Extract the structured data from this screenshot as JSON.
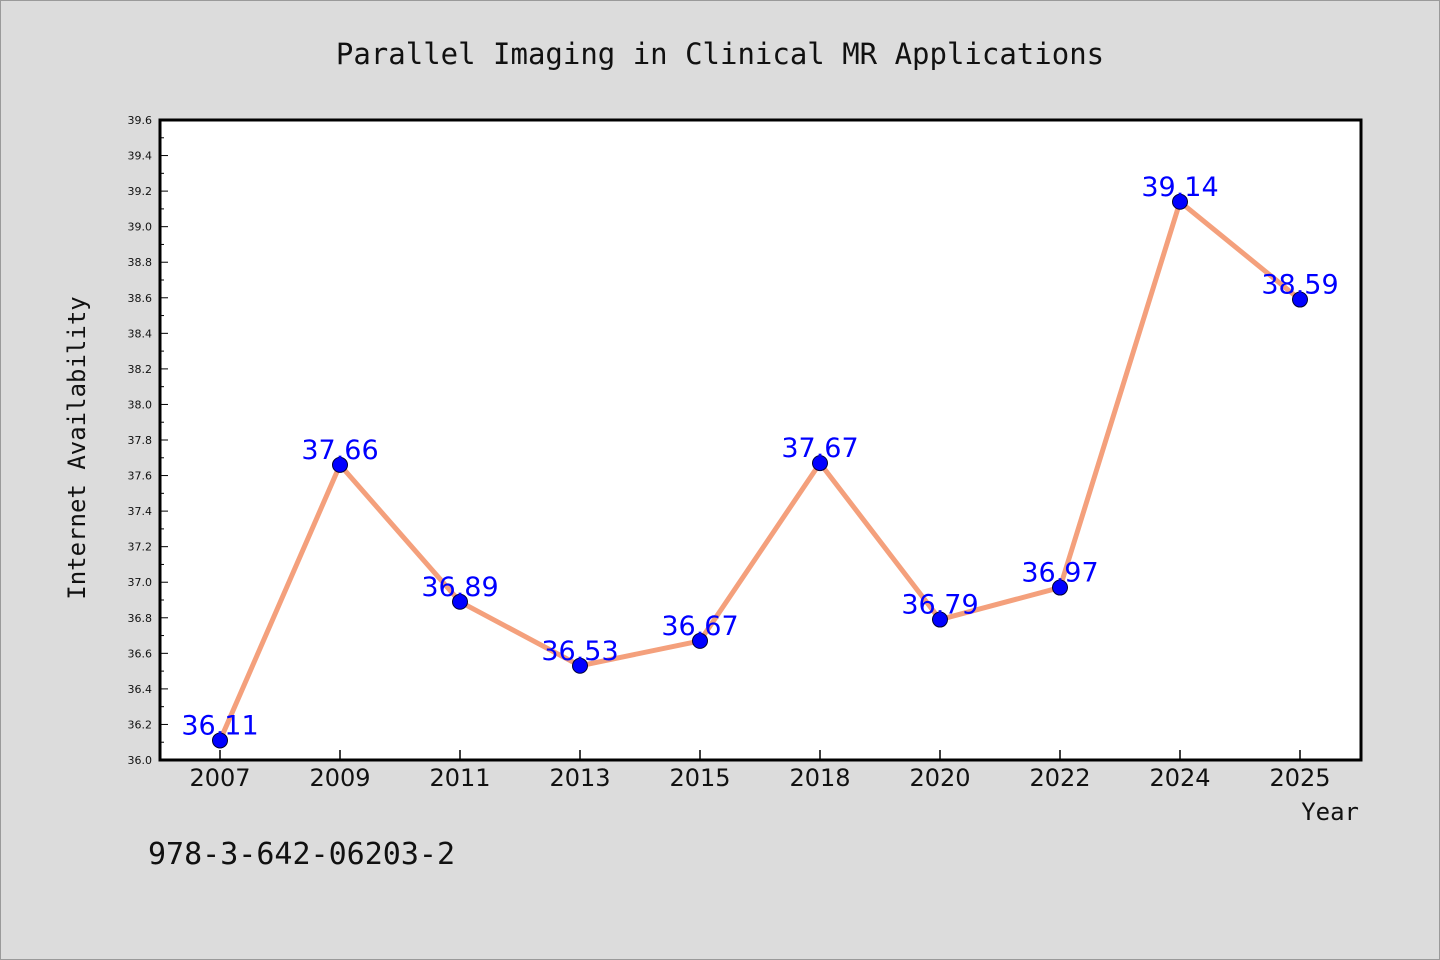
{
  "colors": {
    "background": "#dcdcdc",
    "plot_background": "#ffffff",
    "line": "#f4a07c",
    "marker": "#0000ff",
    "data_label": "#0000ff",
    "axis": "#000000"
  },
  "footer": {
    "code": "978-3-642-06203-2"
  },
  "chart_data": {
    "type": "line",
    "title": "Parallel Imaging in Clinical MR Applications",
    "xlabel": "Year",
    "ylabel": "Internet Availability",
    "categories": [
      "2007",
      "2009",
      "2011",
      "2013",
      "2015",
      "2018",
      "2020",
      "2022",
      "2024",
      "2025"
    ],
    "series": [
      {
        "values": [
          36.11,
          37.66,
          36.89,
          36.53,
          36.67,
          37.67,
          36.79,
          36.97,
          39.14,
          38.59
        ]
      }
    ],
    "data_labels": [
      "36.11",
      "37.66",
      "36.89",
      "36.53",
      "36.67",
      "37.67",
      "36.79",
      "36.97",
      "39.14",
      "38.59"
    ],
    "ylim": [
      36.0,
      39.6
    ],
    "yticks": [
      "36.0",
      "36.2",
      "36.4",
      "36.6",
      "36.8",
      "37.0",
      "37.2",
      "37.4",
      "37.6",
      "37.8",
      "38.0",
      "38.2",
      "38.4",
      "38.6",
      "38.8",
      "39.0",
      "39.2",
      "39.4",
      "39.6"
    ],
    "grid": false,
    "legend": "none"
  }
}
